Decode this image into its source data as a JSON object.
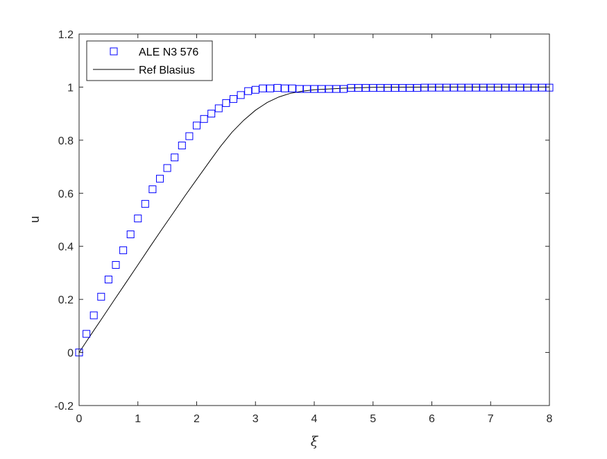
{
  "chart_data": {
    "type": "line",
    "title": "",
    "xlabel": "ξ",
    "ylabel": "u",
    "xlim": [
      0,
      8
    ],
    "ylim": [
      -0.2,
      1.2
    ],
    "xticks": [
      0,
      1,
      2,
      3,
      4,
      5,
      6,
      7,
      8
    ],
    "xtick_labels": [
      "0",
      "1",
      "2",
      "3",
      "4",
      "5",
      "6",
      "7",
      "8"
    ],
    "yticks": [
      -0.2,
      0,
      0.2,
      0.4,
      0.6,
      0.8,
      1,
      1.2
    ],
    "ytick_labels": [
      "-0.2",
      "0",
      "0.2",
      "0.4",
      "0.6",
      "0.8",
      "1",
      "1.2"
    ],
    "grid": false,
    "legend_position": "top-left",
    "colors": {
      "ale_markers": "#0000ff",
      "blasius_line": "#000000",
      "axes": "#262626"
    },
    "series": [
      {
        "name": "ALE N3 576",
        "style": "markers-square",
        "x": [
          0,
          0.125,
          0.25,
          0.375,
          0.5,
          0.625,
          0.75,
          0.875,
          1.0,
          1.125,
          1.25,
          1.375,
          1.5,
          1.625,
          1.75,
          1.875,
          2.0,
          2.125,
          2.25,
          2.375,
          2.5,
          2.625,
          2.75,
          2.875,
          3.0,
          3.125,
          3.25,
          3.375,
          3.5,
          3.625,
          3.75,
          3.875,
          4.0,
          4.125,
          4.25,
          4.375,
          4.5,
          4.625,
          4.75,
          4.875,
          5.0,
          5.125,
          5.25,
          5.375,
          5.5,
          5.625,
          5.75,
          5.875,
          6.0,
          6.125,
          6.25,
          6.375,
          6.5,
          6.625,
          6.75,
          6.875,
          7.0,
          7.125,
          7.25,
          7.375,
          7.5,
          7.625,
          7.75,
          7.875,
          8.0
        ],
        "y": [
          0.0,
          0.07,
          0.14,
          0.21,
          0.275,
          0.33,
          0.385,
          0.445,
          0.505,
          0.56,
          0.615,
          0.655,
          0.695,
          0.735,
          0.78,
          0.815,
          0.855,
          0.88,
          0.9,
          0.92,
          0.94,
          0.955,
          0.97,
          0.985,
          0.99,
          0.995,
          0.995,
          0.997,
          0.995,
          0.995,
          0.993,
          0.993,
          0.993,
          0.993,
          0.993,
          0.993,
          0.993,
          0.997,
          0.997,
          0.997,
          0.997,
          0.997,
          0.997,
          0.997,
          0.997,
          0.997,
          0.997,
          0.998,
          0.998,
          0.998,
          0.998,
          0.998,
          0.998,
          0.998,
          0.998,
          0.998,
          0.998,
          0.998,
          0.998,
          0.998,
          0.998,
          0.998,
          0.998,
          0.998,
          0.998
        ]
      },
      {
        "name": "Ref Blasius",
        "style": "line",
        "x": [
          0,
          0.2,
          0.4,
          0.6,
          0.8,
          1.0,
          1.2,
          1.4,
          1.6,
          1.8,
          2.0,
          2.2,
          2.4,
          2.6,
          2.8,
          3.0,
          3.2,
          3.4,
          3.6,
          3.8,
          4.0,
          4.5,
          5.0,
          6.0,
          7.0,
          8.0
        ],
        "y": [
          0.0,
          0.066,
          0.132,
          0.198,
          0.264,
          0.33,
          0.396,
          0.461,
          0.525,
          0.59,
          0.652,
          0.714,
          0.775,
          0.83,
          0.875,
          0.913,
          0.942,
          0.963,
          0.977,
          0.985,
          0.99,
          0.996,
          0.999,
          1.0,
          1.0,
          1.0
        ]
      }
    ]
  }
}
